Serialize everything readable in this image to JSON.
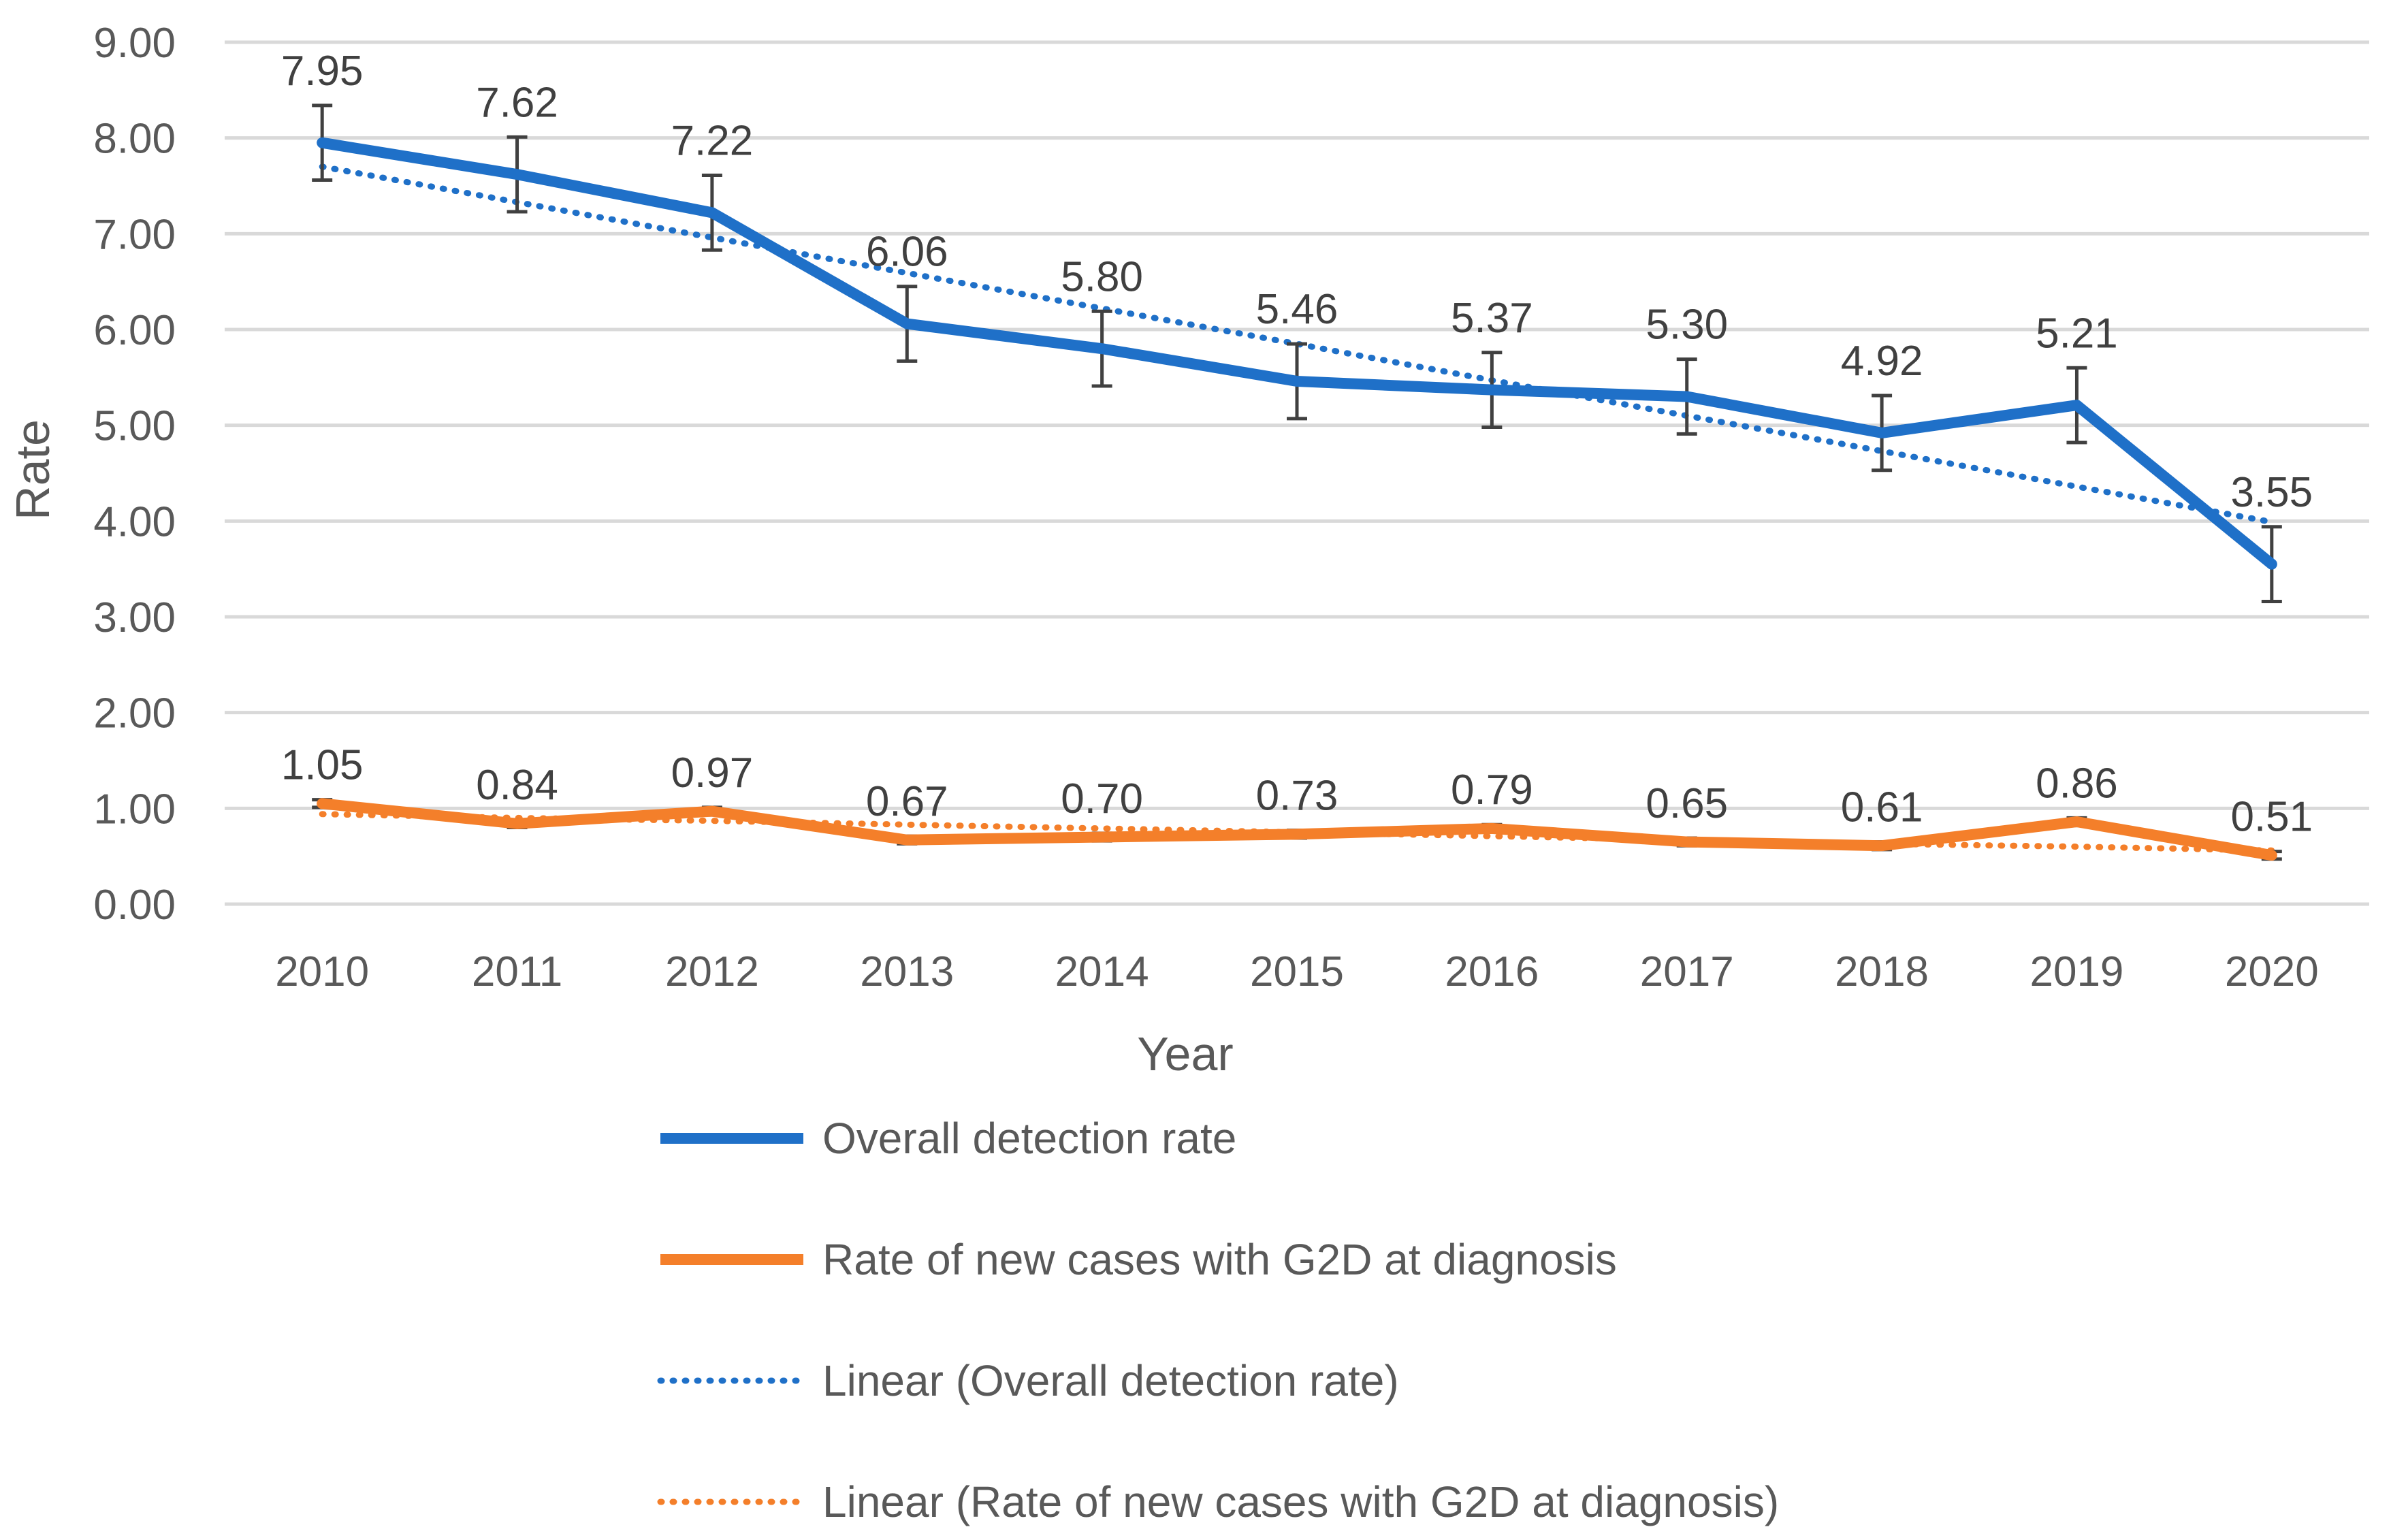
{
  "chart_data": {
    "type": "line",
    "title": "",
    "xlabel": "Year",
    "ylabel": "Rate",
    "ylim": [
      0,
      9
    ],
    "yticks": [
      "0.00",
      "1.00",
      "2.00",
      "3.00",
      "4.00",
      "5.00",
      "6.00",
      "7.00",
      "8.00",
      "9.00"
    ],
    "grid": true,
    "legend_position": "bottom",
    "categories": [
      "2010",
      "2011",
      "2012",
      "2013",
      "2014",
      "2015",
      "2016",
      "2017",
      "2018",
      "2019",
      "2020"
    ],
    "series": [
      {
        "name": "Overall detection rate",
        "values": [
          7.95,
          7.62,
          7.22,
          6.06,
          5.8,
          5.46,
          5.37,
          5.3,
          4.92,
          5.21,
          3.55
        ],
        "labels": [
          "7.95",
          "7.62",
          "7.22",
          "6.06",
          "5.80",
          "5.46",
          "5.37",
          "5.30",
          "4.92",
          "5.21",
          "3.55"
        ],
        "error": 0.39,
        "color": "#1F70C8",
        "style": "solid"
      },
      {
        "name": "Rate of new cases with G2D at diagnosis",
        "values": [
          1.05,
          0.84,
          0.97,
          0.67,
          0.7,
          0.73,
          0.79,
          0.65,
          0.61,
          0.86,
          0.51
        ],
        "labels": [
          "1.05",
          "0.84",
          "0.97",
          "0.67",
          "0.70",
          "0.73",
          "0.79",
          "0.65",
          "0.61",
          "0.86",
          "0.51"
        ],
        "error": 0.04,
        "color": "#F47F2A",
        "style": "solid"
      },
      {
        "name": "Linear (Overall detection rate)",
        "values": [
          7.7,
          7.33,
          6.96,
          6.59,
          6.22,
          5.85,
          5.47,
          5.1,
          4.73,
          4.36,
          3.99
        ],
        "color": "#1F70C8",
        "style": "dotted"
      },
      {
        "name": "Linear (Rate of new cases with G2D at diagnosis)",
        "values": [
          0.94,
          0.9,
          0.87,
          0.83,
          0.79,
          0.75,
          0.71,
          0.67,
          0.63,
          0.6,
          0.56
        ],
        "color": "#F47F2A",
        "style": "dotted"
      }
    ]
  }
}
